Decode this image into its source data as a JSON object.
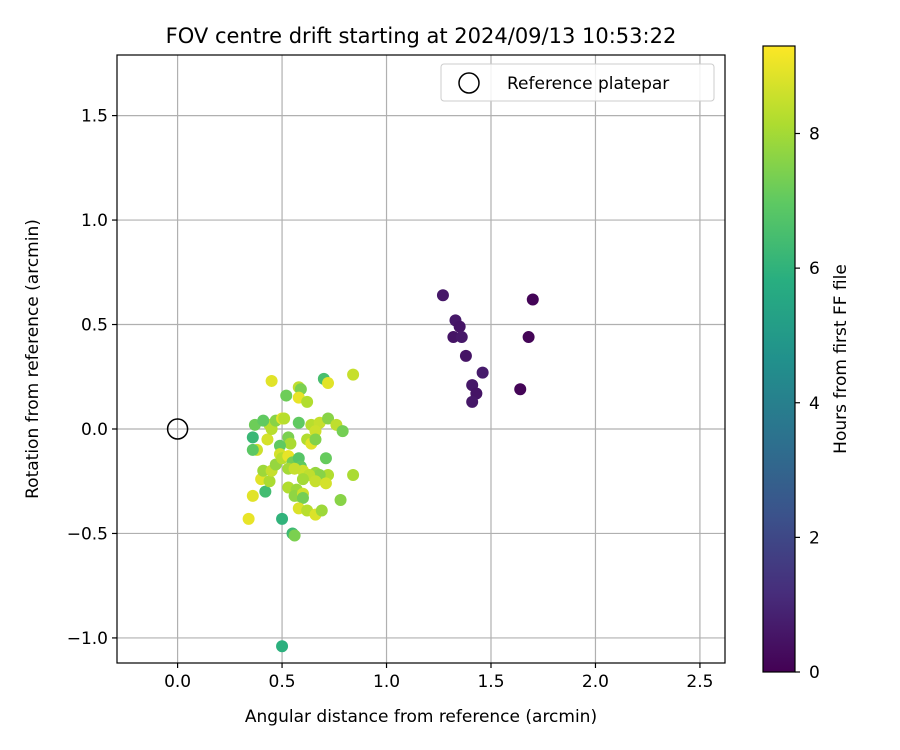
{
  "chart_data": {
    "type": "scatter",
    "title": "FOV centre drift starting at 2024/09/13 10:53:22",
    "xlabel": "Angular distance from reference (arcmin)",
    "ylabel": "Rotation from reference (arcmin)",
    "xlim": [
      -0.29,
      2.62
    ],
    "ylim": [
      -1.12,
      1.79
    ],
    "xticks": [
      0.0,
      0.5,
      1.0,
      1.5,
      2.0,
      2.5
    ],
    "xtick_labels": [
      "0.0",
      "0.5",
      "1.0",
      "1.5",
      "2.0",
      "2.5"
    ],
    "yticks": [
      -1.0,
      -0.5,
      0.0,
      0.5,
      1.0,
      1.5
    ],
    "ytick_labels": [
      "−1.0",
      "−0.5",
      "0.0",
      "0.5",
      "1.0",
      "1.5"
    ],
    "grid": true,
    "legend": {
      "position": "top-right",
      "entries": [
        "Reference platepar"
      ]
    },
    "reference_point": {
      "x": 0.0,
      "y": 0.0,
      "label": "Reference platepar"
    },
    "colorbar": {
      "label": "Hours from first FF file",
      "colormap": "viridis",
      "range": [
        0,
        9.3
      ],
      "ticks": [
        0,
        2,
        4,
        6,
        8
      ],
      "tick_labels": [
        "0",
        "2",
        "4",
        "6",
        "8"
      ]
    },
    "points": [
      {
        "x": 1.27,
        "y": 0.64,
        "c": 0.6
      },
      {
        "x": 1.33,
        "y": 0.52,
        "c": 0.6
      },
      {
        "x": 1.35,
        "y": 0.49,
        "c": 0.5
      },
      {
        "x": 1.32,
        "y": 0.44,
        "c": 0.5
      },
      {
        "x": 1.36,
        "y": 0.44,
        "c": 0.6
      },
      {
        "x": 1.38,
        "y": 0.35,
        "c": 0.5
      },
      {
        "x": 1.46,
        "y": 0.27,
        "c": 0.7
      },
      {
        "x": 1.41,
        "y": 0.21,
        "c": 0.6
      },
      {
        "x": 1.43,
        "y": 0.17,
        "c": 0.5
      },
      {
        "x": 1.41,
        "y": 0.13,
        "c": 0.6
      },
      {
        "x": 1.64,
        "y": 0.19,
        "c": 0.1
      },
      {
        "x": 1.68,
        "y": 0.44,
        "c": 0.1
      },
      {
        "x": 1.7,
        "y": 0.62,
        "c": 0.1
      },
      {
        "x": 0.5,
        "y": -1.04,
        "c": 5.9
      },
      {
        "x": 0.5,
        "y": -0.43,
        "c": 6.0
      },
      {
        "x": 0.55,
        "y": -0.5,
        "c": 6.3
      },
      {
        "x": 0.56,
        "y": -0.51,
        "c": 7.4
      },
      {
        "x": 0.34,
        "y": -0.43,
        "c": 9.0
      },
      {
        "x": 0.36,
        "y": -0.32,
        "c": 8.9
      },
      {
        "x": 0.42,
        "y": -0.3,
        "c": 6.4
      },
      {
        "x": 0.4,
        "y": -0.24,
        "c": 8.9
      },
      {
        "x": 0.41,
        "y": -0.2,
        "c": 7.9
      },
      {
        "x": 0.44,
        "y": -0.25,
        "c": 8.1
      },
      {
        "x": 0.45,
        "y": -0.2,
        "c": 8.5
      },
      {
        "x": 0.47,
        "y": -0.17,
        "c": 7.8
      },
      {
        "x": 0.38,
        "y": -0.1,
        "c": 8.6
      },
      {
        "x": 0.36,
        "y": -0.1,
        "c": 6.9
      },
      {
        "x": 0.36,
        "y": -0.04,
        "c": 6.2
      },
      {
        "x": 0.43,
        "y": -0.05,
        "c": 8.7
      },
      {
        "x": 0.44,
        "y": 0.02,
        "c": 8.4
      },
      {
        "x": 0.37,
        "y": 0.02,
        "c": 7.2
      },
      {
        "x": 0.41,
        "y": 0.04,
        "c": 7.0
      },
      {
        "x": 0.45,
        "y": 0.0,
        "c": 8.3
      },
      {
        "x": 0.47,
        "y": 0.04,
        "c": 7.6
      },
      {
        "x": 0.5,
        "y": 0.05,
        "c": 8.9
      },
      {
        "x": 0.51,
        "y": 0.05,
        "c": 8.3
      },
      {
        "x": 0.45,
        "y": 0.23,
        "c": 8.9
      },
      {
        "x": 0.52,
        "y": 0.16,
        "c": 7.2
      },
      {
        "x": 0.58,
        "y": 0.2,
        "c": 8.4
      },
      {
        "x": 0.59,
        "y": 0.19,
        "c": 7.4
      },
      {
        "x": 0.58,
        "y": 0.15,
        "c": 9.0
      },
      {
        "x": 0.62,
        "y": 0.13,
        "c": 8.2
      },
      {
        "x": 0.7,
        "y": 0.24,
        "c": 6.5
      },
      {
        "x": 0.72,
        "y": 0.22,
        "c": 8.9
      },
      {
        "x": 0.84,
        "y": 0.26,
        "c": 8.5
      },
      {
        "x": 0.58,
        "y": 0.03,
        "c": 7.0
      },
      {
        "x": 0.64,
        "y": 0.02,
        "c": 8.3
      },
      {
        "x": 0.68,
        "y": 0.03,
        "c": 8.5
      },
      {
        "x": 0.66,
        "y": -0.01,
        "c": 8.6
      },
      {
        "x": 0.72,
        "y": 0.05,
        "c": 7.6
      },
      {
        "x": 0.76,
        "y": 0.02,
        "c": 8.4
      },
      {
        "x": 0.79,
        "y": -0.01,
        "c": 7.3
      },
      {
        "x": 0.62,
        "y": -0.05,
        "c": 8.2
      },
      {
        "x": 0.64,
        "y": -0.07,
        "c": 8.9
      },
      {
        "x": 0.66,
        "y": -0.05,
        "c": 7.5
      },
      {
        "x": 0.53,
        "y": -0.04,
        "c": 7.4
      },
      {
        "x": 0.54,
        "y": -0.07,
        "c": 8.1
      },
      {
        "x": 0.49,
        "y": -0.08,
        "c": 7.0
      },
      {
        "x": 0.49,
        "y": -0.12,
        "c": 8.7
      },
      {
        "x": 0.5,
        "y": -0.14,
        "c": 8.3
      },
      {
        "x": 0.53,
        "y": -0.13,
        "c": 9.0
      },
      {
        "x": 0.55,
        "y": -0.16,
        "c": 7.3
      },
      {
        "x": 0.58,
        "y": -0.14,
        "c": 6.8
      },
      {
        "x": 0.59,
        "y": -0.18,
        "c": 7.0
      },
      {
        "x": 0.6,
        "y": -0.2,
        "c": 8.6
      },
      {
        "x": 0.53,
        "y": -0.19,
        "c": 8.0
      },
      {
        "x": 0.56,
        "y": -0.19,
        "c": 8.5
      },
      {
        "x": 0.71,
        "y": -0.14,
        "c": 7.1
      },
      {
        "x": 0.84,
        "y": -0.22,
        "c": 8.1
      },
      {
        "x": 0.72,
        "y": -0.22,
        "c": 8.2
      },
      {
        "x": 0.66,
        "y": -0.21,
        "c": 7.8
      },
      {
        "x": 0.68,
        "y": -0.22,
        "c": 7.6
      },
      {
        "x": 0.63,
        "y": -0.22,
        "c": 8.4
      },
      {
        "x": 0.6,
        "y": -0.24,
        "c": 8.0
      },
      {
        "x": 0.66,
        "y": -0.25,
        "c": 8.5
      },
      {
        "x": 0.71,
        "y": -0.26,
        "c": 8.7
      },
      {
        "x": 0.53,
        "y": -0.28,
        "c": 8.2
      },
      {
        "x": 0.57,
        "y": -0.29,
        "c": 7.9
      },
      {
        "x": 0.58,
        "y": -0.32,
        "c": 8.1
      },
      {
        "x": 0.56,
        "y": -0.32,
        "c": 7.7
      },
      {
        "x": 0.6,
        "y": -0.31,
        "c": 8.6
      },
      {
        "x": 0.6,
        "y": -0.33,
        "c": 7.3
      },
      {
        "x": 0.78,
        "y": -0.34,
        "c": 7.6
      },
      {
        "x": 0.58,
        "y": -0.38,
        "c": 8.8
      },
      {
        "x": 0.62,
        "y": -0.39,
        "c": 8.3
      },
      {
        "x": 0.66,
        "y": -0.41,
        "c": 8.8
      },
      {
        "x": 0.69,
        "y": -0.39,
        "c": 7.9
      }
    ]
  }
}
